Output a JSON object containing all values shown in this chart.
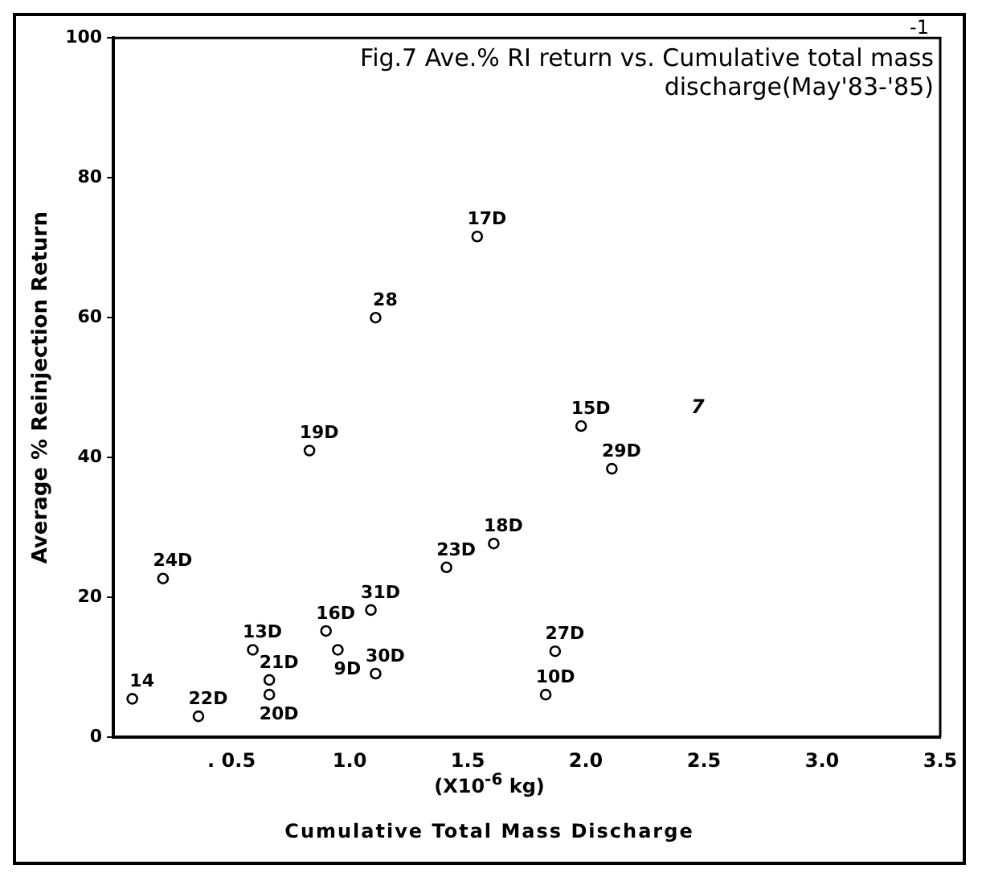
{
  "chart_data": {
    "type": "scatter",
    "title": "Fig.7 Ave.% RI return vs. Cumulative total mass\ndischarge(May'83-'85)",
    "xlabel": "Cumulative Total Mass Discharge",
    "ylabel": "Average % Reinjection Return",
    "x": [
      0.08,
      0.36,
      0.21,
      0.59,
      0.66,
      0.66,
      0.9,
      0.95,
      1.09,
      1.11,
      0.83,
      1.11,
      1.54,
      1.41,
      1.61,
      1.87,
      1.83,
      1.98,
      2.11
    ],
    "series": [
      {
        "color": "#000000",
        "values": [
          5.5,
          3,
          22.7,
          12.5,
          8.2,
          6.1,
          15.2,
          12.5,
          18.2,
          9.1,
          41,
          60,
          71.6,
          24.3,
          27.7,
          12.3,
          6.1,
          44.5,
          38.4
        ]
      }
    ],
    "xlim": [
      0,
      3.5
    ],
    "xticks": [
      {
        "value": 0.5,
        "label": ". 0.5"
      },
      {
        "value": 1,
        "label": "1.0"
      },
      {
        "value": 1.5,
        "label": "1.5"
      },
      {
        "value": 2,
        "label": "2.0"
      },
      {
        "value": 2.5,
        "label": "2.5"
      },
      {
        "value": 3,
        "label": "3.0"
      },
      {
        "value": 3.5,
        "label": "3.5"
      }
    ],
    "ylim": [
      0,
      100
    ],
    "yticks": [
      0,
      20,
      40,
      60,
      80,
      100
    ],
    "grid": false,
    "legend": false,
    "marker": "circle",
    "annotations": [
      {
        "text": "14",
        "x": 0.08,
        "y": 5.5
      },
      {
        "text": "22D",
        "x": 0.36,
        "y": 3
      },
      {
        "text": "24D",
        "x": 0.21,
        "y": 22.7
      },
      {
        "text": "13D",
        "x": 0.59,
        "y": 12.5
      },
      {
        "text": "21D",
        "x": 0.66,
        "y": 8.2
      },
      {
        "text": "20D",
        "x": 0.66,
        "y": 6.1
      },
      {
        "text": "16D",
        "x": 0.9,
        "y": 15.2
      },
      {
        "text": "9D",
        "x": 0.95,
        "y": 12.5
      },
      {
        "text": "31D",
        "x": 1.09,
        "y": 18.2
      },
      {
        "text": "30D",
        "x": 1.11,
        "y": 9.1
      },
      {
        "text": "19D",
        "x": 0.83,
        "y": 41
      },
      {
        "text": "28",
        "x": 1.11,
        "y": 60
      },
      {
        "text": "17D",
        "x": 1.54,
        "y": 71.6
      },
      {
        "text": "23D",
        "x": 1.41,
        "y": 24.3
      },
      {
        "text": "18D",
        "x": 1.61,
        "y": 27.7
      },
      {
        "text": "27D",
        "x": 1.87,
        "y": 12.3
      },
      {
        "text": "10D",
        "x": 1.83,
        "y": 6.1
      },
      {
        "text": "15D",
        "x": 1.98,
        "y": 44.5
      },
      {
        "text": "29D",
        "x": 2.11,
        "y": 38.4
      },
      "(X10$^{-6}$ kg)",
      "7",
      "-1"
    ]
  }
}
